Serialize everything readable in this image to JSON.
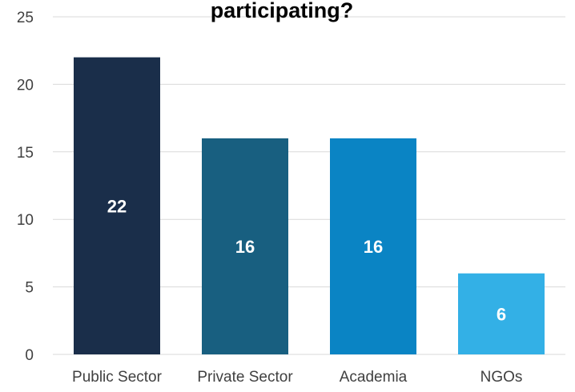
{
  "chart_data": {
    "type": "bar",
    "title": "participating?",
    "categories": [
      "Public Sector",
      "Private Sector",
      "Academia",
      "NGOs"
    ],
    "values": [
      22,
      16,
      16,
      6
    ],
    "data_labels": [
      "22",
      "16",
      "16",
      "6"
    ],
    "ylim": [
      0,
      25
    ],
    "yticks": [
      0,
      5,
      10,
      15,
      20,
      25
    ],
    "grid": true,
    "xlabel": "",
    "ylabel": "",
    "colors": [
      "#1a2e4a",
      "#185f80",
      "#0a84c4",
      "#33b0e6"
    ]
  }
}
